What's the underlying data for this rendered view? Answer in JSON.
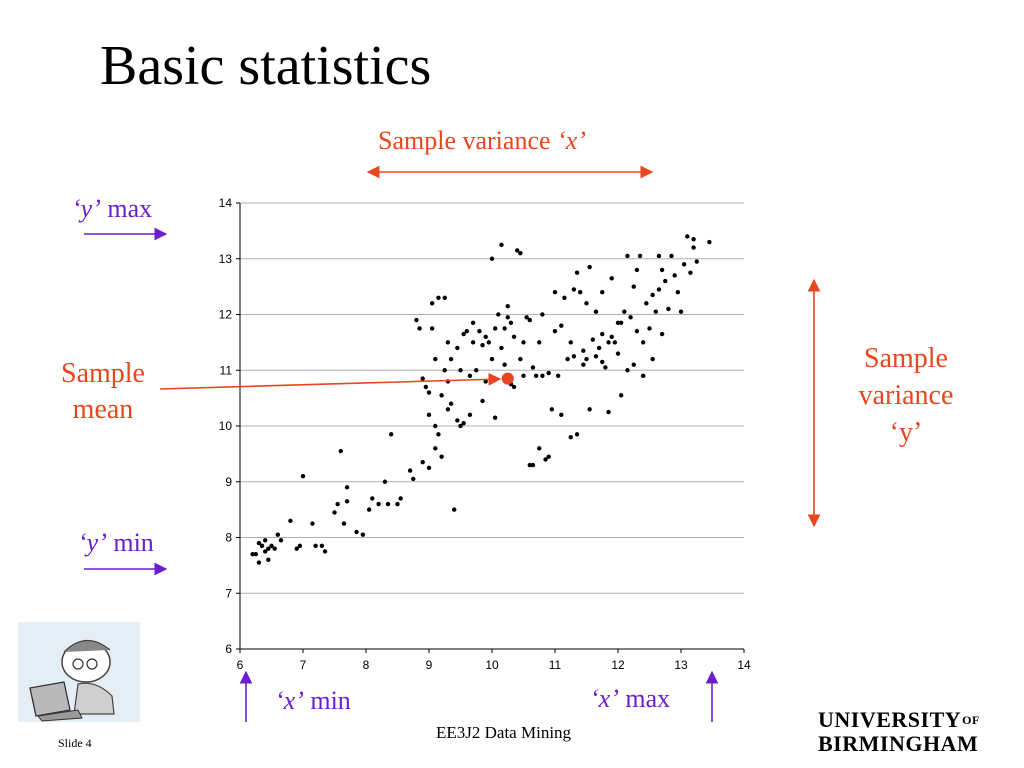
{
  "slide": {
    "title": "Basic statistics",
    "footer_course": "EE3J2 Data Mining",
    "footer_slide": "Slide 4",
    "logo_line1": "UNIVERSITY",
    "logo_of": "OF",
    "logo_line2": "BIRMINGHAM"
  },
  "annotations": {
    "sample_variance_x_prefix": "Sample variance ",
    "sample_variance_x_var": "‘x’",
    "y_max_var": "‘y’",
    "y_max_word": " max",
    "y_min_var": "‘y’",
    "y_min_word": " min",
    "x_min_var": "‘x’",
    "x_min_word": " min",
    "x_max_var": "‘x’",
    "x_max_word": " max",
    "sample_mean_line1": "Sample",
    "sample_mean_line2": "mean",
    "sample_variance_y_line1": "Sample",
    "sample_variance_y_line2": "variance",
    "sample_variance_y_line3": "‘y’"
  },
  "colors": {
    "annotation_red": "#e8461e",
    "annotation_purple": "#6a1fcf",
    "mean_marker": "#e8461e",
    "points": "#000000",
    "gridline": "#b0b0b0"
  },
  "chart_data": {
    "type": "scatter",
    "title": "",
    "xlabel": "",
    "ylabel": "",
    "xlim": [
      6,
      14
    ],
    "ylim": [
      6,
      14
    ],
    "x_ticks": [
      6,
      7,
      8,
      9,
      10,
      11,
      12,
      13,
      14
    ],
    "y_ticks": [
      6,
      7,
      8,
      9,
      10,
      11,
      12,
      13,
      14
    ],
    "grid": "horizontal",
    "legend": "none",
    "sample_mean": [
      10.25,
      10.85
    ],
    "points": [
      [
        6.2,
        7.7
      ],
      [
        6.3,
        7.9
      ],
      [
        6.35,
        7.85
      ],
      [
        6.4,
        7.95
      ],
      [
        6.45,
        7.8
      ],
      [
        6.5,
        7.85
      ],
      [
        6.3,
        7.55
      ],
      [
        6.45,
        7.6
      ],
      [
        6.25,
        7.7
      ],
      [
        6.4,
        7.75
      ],
      [
        6.55,
        7.8
      ],
      [
        6.6,
        8.05
      ],
      [
        6.65,
        7.95
      ],
      [
        6.8,
        8.3
      ],
      [
        6.9,
        7.8
      ],
      [
        6.95,
        7.85
      ],
      [
        7.0,
        9.1
      ],
      [
        7.15,
        8.25
      ],
      [
        7.2,
        7.85
      ],
      [
        7.3,
        7.85
      ],
      [
        7.35,
        7.75
      ],
      [
        7.5,
        8.45
      ],
      [
        7.55,
        8.6
      ],
      [
        7.6,
        9.55
      ],
      [
        7.65,
        8.25
      ],
      [
        7.7,
        8.9
      ],
      [
        7.7,
        8.65
      ],
      [
        7.85,
        8.1
      ],
      [
        7.95,
        8.05
      ],
      [
        8.05,
        8.5
      ],
      [
        8.1,
        8.7
      ],
      [
        8.2,
        8.6
      ],
      [
        8.3,
        9.0
      ],
      [
        8.35,
        8.6
      ],
      [
        8.4,
        9.85
      ],
      [
        8.5,
        8.6
      ],
      [
        8.55,
        8.7
      ],
      [
        8.7,
        9.2
      ],
      [
        8.75,
        9.05
      ],
      [
        8.8,
        11.9
      ],
      [
        8.85,
        11.75
      ],
      [
        8.9,
        10.85
      ],
      [
        8.9,
        9.35
      ],
      [
        8.95,
        10.7
      ],
      [
        9.0,
        9.25
      ],
      [
        9.0,
        10.2
      ],
      [
        9.05,
        12.2
      ],
      [
        9.05,
        11.75
      ],
      [
        9.1,
        9.6
      ],
      [
        9.1,
        10.0
      ],
      [
        9.15,
        12.3
      ],
      [
        9.1,
        11.2
      ],
      [
        9.15,
        9.85
      ],
      [
        9.2,
        9.45
      ],
      [
        9.2,
        10.55
      ],
      [
        9.25,
        11.0
      ],
      [
        9.25,
        12.3
      ],
      [
        9.3,
        10.3
      ],
      [
        9.3,
        11.5
      ],
      [
        9.3,
        10.8
      ],
      [
        9.35,
        11.2
      ],
      [
        9.4,
        8.5
      ],
      [
        9.45,
        10.1
      ],
      [
        9.45,
        11.4
      ],
      [
        9.5,
        10.0
      ],
      [
        9.5,
        11.0
      ],
      [
        9.55,
        11.65
      ],
      [
        9.6,
        11.7
      ],
      [
        9.65,
        10.2
      ],
      [
        9.7,
        11.5
      ],
      [
        9.7,
        11.85
      ],
      [
        9.75,
        11.0
      ],
      [
        9.8,
        11.7
      ],
      [
        9.85,
        11.45
      ],
      [
        9.9,
        11.6
      ],
      [
        9.9,
        10.8
      ],
      [
        9.95,
        11.5
      ],
      [
        10.0,
        11.2
      ],
      [
        10.0,
        13.0
      ],
      [
        10.05,
        11.75
      ],
      [
        10.1,
        12.0
      ],
      [
        10.15,
        11.4
      ],
      [
        10.15,
        13.25
      ],
      [
        10.2,
        11.75
      ],
      [
        10.2,
        11.1
      ],
      [
        10.25,
        12.15
      ],
      [
        10.25,
        11.95
      ],
      [
        10.3,
        11.85
      ],
      [
        10.3,
        10.75
      ],
      [
        10.35,
        11.6
      ],
      [
        10.4,
        13.15
      ],
      [
        10.45,
        13.1
      ],
      [
        10.5,
        10.9
      ],
      [
        10.5,
        11.5
      ],
      [
        10.55,
        11.95
      ],
      [
        10.6,
        9.3
      ],
      [
        10.6,
        11.9
      ],
      [
        10.65,
        9.3
      ],
      [
        10.65,
        11.05
      ],
      [
        10.7,
        10.9
      ],
      [
        10.75,
        9.6
      ],
      [
        10.75,
        11.5
      ],
      [
        10.8,
        10.9
      ],
      [
        10.8,
        12.0
      ],
      [
        10.85,
        9.4
      ],
      [
        10.9,
        9.45
      ],
      [
        10.9,
        10.95
      ],
      [
        10.95,
        10.3
      ],
      [
        11.0,
        12.4
      ],
      [
        11.0,
        11.7
      ],
      [
        11.05,
        10.9
      ],
      [
        11.1,
        11.8
      ],
      [
        11.15,
        12.3
      ],
      [
        11.2,
        11.2
      ],
      [
        11.25,
        11.5
      ],
      [
        11.25,
        9.8
      ],
      [
        11.3,
        12.45
      ],
      [
        11.3,
        11.25
      ],
      [
        11.35,
        12.75
      ],
      [
        11.35,
        9.85
      ],
      [
        11.4,
        12.4
      ],
      [
        11.45,
        11.1
      ],
      [
        11.5,
        11.2
      ],
      [
        11.5,
        12.2
      ],
      [
        11.55,
        10.3
      ],
      [
        11.55,
        12.85
      ],
      [
        11.6,
        11.55
      ],
      [
        11.65,
        11.25
      ],
      [
        11.65,
        12.05
      ],
      [
        11.7,
        11.4
      ],
      [
        11.75,
        11.65
      ],
      [
        11.75,
        12.4
      ],
      [
        11.8,
        11.05
      ],
      [
        11.85,
        11.5
      ],
      [
        11.85,
        10.25
      ],
      [
        11.9,
        11.6
      ],
      [
        11.9,
        12.65
      ],
      [
        12.0,
        11.85
      ],
      [
        12.0,
        11.3
      ],
      [
        12.05,
        10.55
      ],
      [
        12.1,
        12.05
      ],
      [
        12.15,
        11.0
      ],
      [
        12.15,
        13.05
      ],
      [
        12.2,
        11.95
      ],
      [
        12.25,
        12.5
      ],
      [
        12.3,
        12.8
      ],
      [
        12.3,
        11.7
      ],
      [
        12.35,
        13.05
      ],
      [
        12.4,
        11.5
      ],
      [
        12.4,
        10.9
      ],
      [
        12.45,
        12.2
      ],
      [
        12.5,
        11.75
      ],
      [
        12.55,
        12.35
      ],
      [
        12.6,
        12.05
      ],
      [
        12.65,
        12.45
      ],
      [
        12.65,
        13.05
      ],
      [
        12.7,
        11.65
      ],
      [
        12.7,
        12.8
      ],
      [
        12.75,
        12.6
      ],
      [
        12.8,
        12.1
      ],
      [
        12.85,
        13.05
      ],
      [
        12.9,
        12.7
      ],
      [
        12.95,
        12.4
      ],
      [
        13.0,
        12.05
      ],
      [
        13.05,
        12.9
      ],
      [
        13.1,
        13.4
      ],
      [
        13.15,
        12.75
      ],
      [
        13.2,
        13.2
      ],
      [
        13.2,
        13.35
      ],
      [
        13.25,
        12.95
      ],
      [
        13.45,
        13.3
      ],
      [
        9.55,
        10.05
      ],
      [
        9.85,
        10.45
      ],
      [
        10.05,
        10.15
      ],
      [
        10.35,
        10.7
      ],
      [
        11.1,
        10.2
      ],
      [
        11.45,
        11.35
      ],
      [
        11.95,
        11.5
      ],
      [
        12.25,
        11.1
      ],
      [
        12.55,
        11.2
      ],
      [
        10.45,
        11.2
      ],
      [
        9.35,
        10.4
      ],
      [
        9.0,
        10.6
      ],
      [
        9.65,
        10.9
      ],
      [
        11.75,
        11.15
      ],
      [
        12.05,
        11.85
      ]
    ]
  }
}
